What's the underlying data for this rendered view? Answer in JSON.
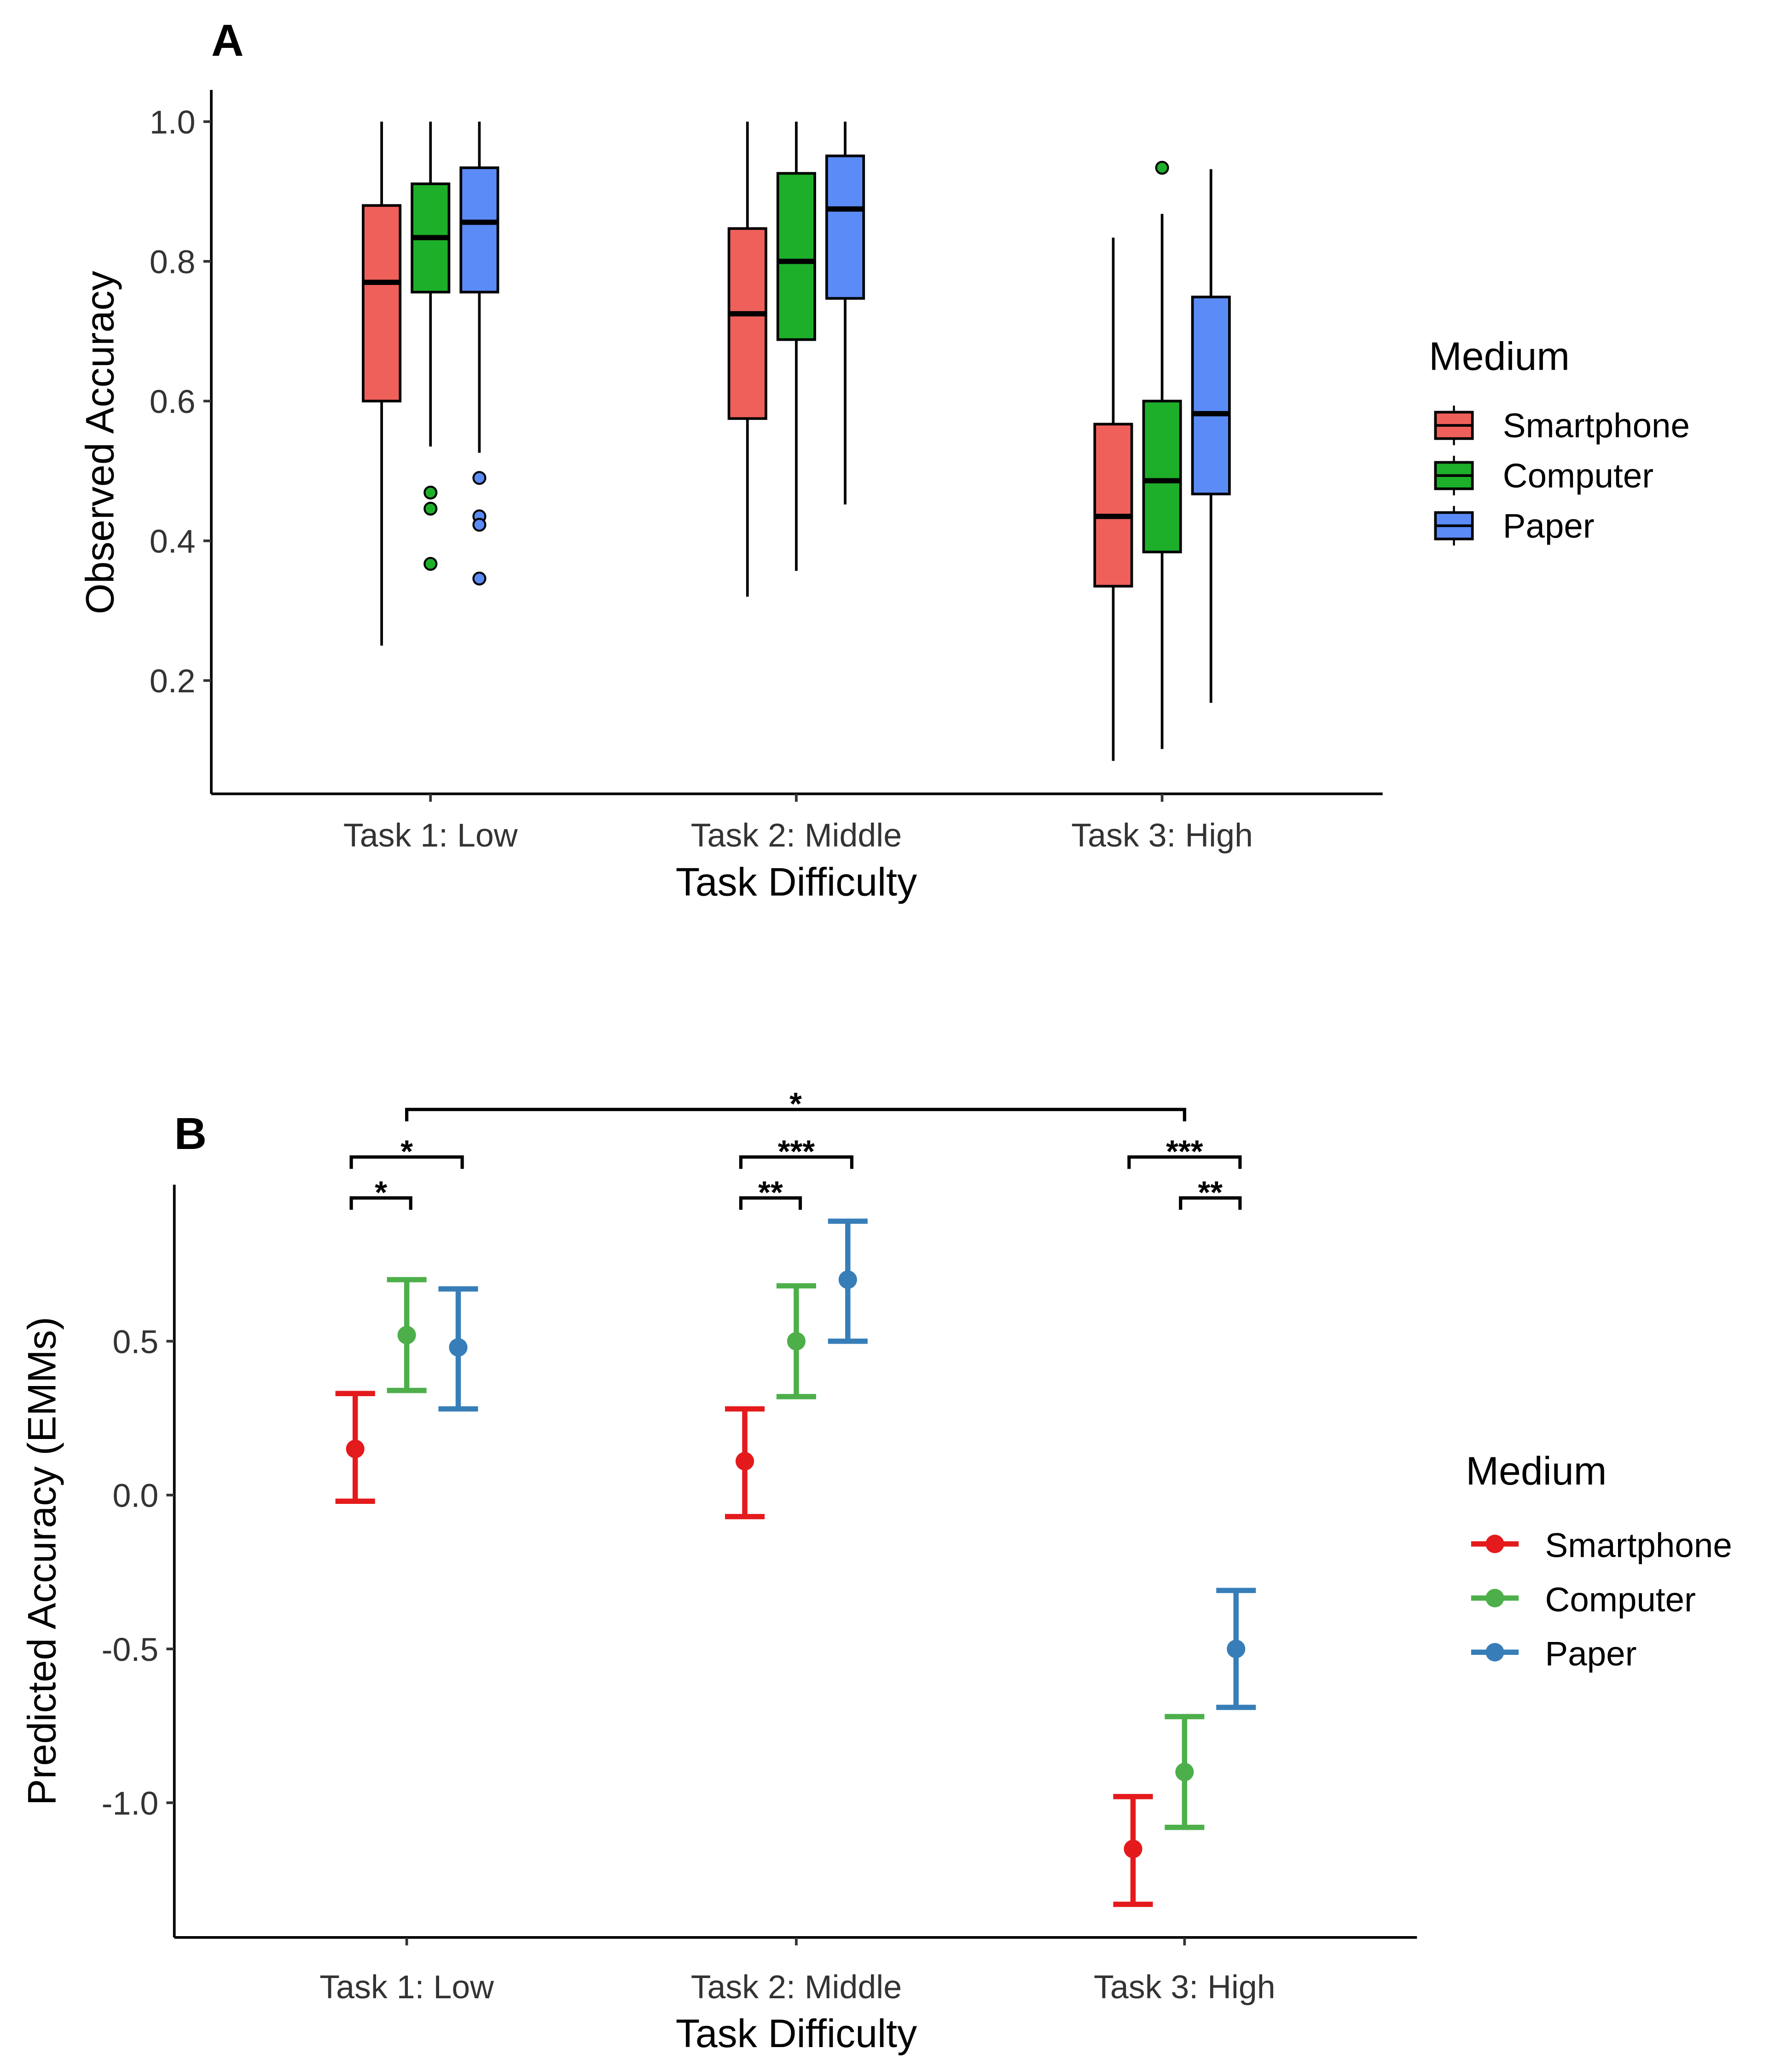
{
  "chart_data": [
    {
      "type": "box",
      "panel_label": "A",
      "xlabel": "Task Difficulty",
      "ylabel": "Observed Accuracy",
      "categories": [
        "Task 1: Low",
        "Task 2: Middle",
        "Task 3: High"
      ],
      "yticks": [
        "0.2",
        "0.4",
        "0.6",
        "0.8",
        "1.0"
      ],
      "ylim": [
        0.05,
        1.05
      ],
      "legend": {
        "title": "Medium",
        "placement": "right"
      },
      "series": [
        {
          "name": "Smartphone",
          "color": "#F0605A",
          "boxes": [
            {
              "min": 0.25,
              "q1": 0.6,
              "median": 0.77,
              "q3": 0.88,
              "max": 1.0,
              "outliers": []
            },
            {
              "min": 0.32,
              "q1": 0.575,
              "median": 0.725,
              "q3": 0.847,
              "max": 1.0,
              "outliers": []
            },
            {
              "min": 0.085,
              "q1": 0.335,
              "median": 0.435,
              "q3": 0.567,
              "max": 0.834,
              "outliers": []
            }
          ]
        },
        {
          "name": "Computer",
          "color": "#1DAF2A",
          "boxes": [
            {
              "min": 0.535,
              "q1": 0.756,
              "median": 0.834,
              "q3": 0.911,
              "max": 1.0,
              "outliers": [
                0.469,
                0.446,
                0.367
              ]
            },
            {
              "min": 0.357,
              "q1": 0.688,
              "median": 0.8,
              "q3": 0.926,
              "max": 1.0,
              "outliers": []
            },
            {
              "min": 0.102,
              "q1": 0.384,
              "median": 0.486,
              "q3": 0.6,
              "max": 0.868,
              "outliers": [
                0.934
              ]
            }
          ]
        },
        {
          "name": "Paper",
          "color": "#5A8BF7",
          "boxes": [
            {
              "min": 0.526,
              "q1": 0.756,
              "median": 0.856,
              "q3": 0.934,
              "max": 1.0,
              "outliers": [
                0.49,
                0.435,
                0.423,
                0.346
              ]
            },
            {
              "min": 0.452,
              "q1": 0.747,
              "median": 0.875,
              "q3": 0.951,
              "max": 1.0,
              "outliers": []
            },
            {
              "min": 0.168,
              "q1": 0.467,
              "median": 0.582,
              "q3": 0.749,
              "max": 0.932,
              "outliers": []
            }
          ]
        }
      ]
    },
    {
      "type": "errorbar",
      "panel_label": "B",
      "xlabel": "Task Difficulty",
      "ylabel": "Predicted Accuracy (EMMs)",
      "categories": [
        "Task 1: Low",
        "Task 2: Middle",
        "Task 3: High"
      ],
      "yticks": [
        "-1.0",
        "-0.5",
        "0.0",
        "0.5"
      ],
      "ylim": [
        -1.44,
        1.0
      ],
      "legend": {
        "title": "Medium",
        "placement": "right"
      },
      "series": [
        {
          "name": "Smartphone",
          "color": "#E41A1C",
          "points": [
            {
              "y": 0.15,
              "lower": -0.02,
              "upper": 0.33
            },
            {
              "y": 0.11,
              "lower": -0.07,
              "upper": 0.28
            },
            {
              "y": -1.15,
              "lower": -1.33,
              "upper": -0.98
            }
          ]
        },
        {
          "name": "Computer",
          "color": "#4DAF4A",
          "points": [
            {
              "y": 0.52,
              "lower": 0.34,
              "upper": 0.7
            },
            {
              "y": 0.5,
              "lower": 0.32,
              "upper": 0.68
            },
            {
              "y": -0.9,
              "lower": -1.08,
              "upper": -0.72
            }
          ]
        },
        {
          "name": "Paper",
          "color": "#377EB8",
          "points": [
            {
              "y": 0.48,
              "lower": 0.28,
              "upper": 0.67
            },
            {
              "y": 0.7,
              "lower": 0.5,
              "upper": 0.89
            },
            {
              "y": -0.5,
              "lower": -0.69,
              "upper": -0.31
            }
          ]
        }
      ],
      "significance": [
        {
          "task": 0,
          "from": "Smartphone",
          "to": "Computer",
          "label": "*",
          "level": 0
        },
        {
          "task": 0,
          "from": "Smartphone",
          "to": "Paper",
          "label": "*",
          "level": 1
        },
        {
          "task": 1,
          "from": "Smartphone",
          "to": "Computer",
          "label": "**",
          "level": 0
        },
        {
          "task": 1,
          "from": "Smartphone",
          "to": "Paper",
          "label": "***",
          "level": 1
        },
        {
          "task": 2,
          "from": "Computer",
          "to": "Paper",
          "label": "**",
          "level": 0
        },
        {
          "task": 2,
          "from": "Smartphone",
          "to": "Paper",
          "label": "***",
          "level": 1
        },
        {
          "task": "0-2",
          "from": "Computer",
          "to": "Computer",
          "label": "*",
          "level": 2
        }
      ]
    }
  ]
}
